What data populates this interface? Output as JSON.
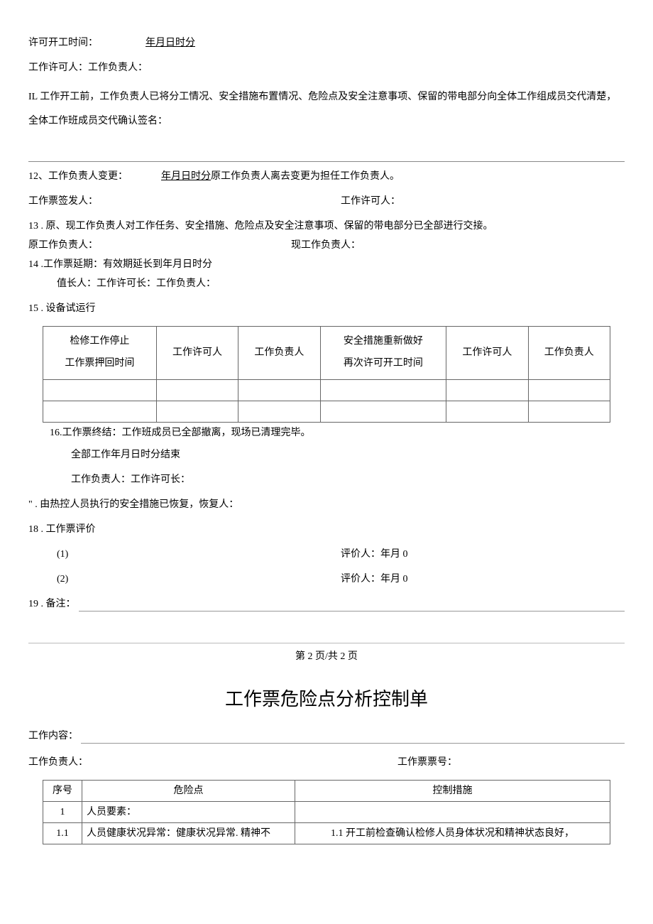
{
  "section_permit_time": {
    "label": "许可开工时间：",
    "value": "年月日时分"
  },
  "section_approvers_line": "工作许可人：工作负责人：",
  "section_IL": "IL 工作开工前，工作负责人已将分工情况、安全措施布置情况、危险点及安全注意事项、保留的带电部分向全体工作组成员交代清楚，全体工作班成员交代确认签名：",
  "item12": {
    "prefix": "12、工作负责人变更：",
    "underline": "年月日时分",
    "suffix": "原工作负责人离去变更为担任工作负责人。"
  },
  "item12_row2": {
    "left": "工作票签发人：",
    "right": "工作许可人："
  },
  "item13": "13  . 原、现工作负责人对工作任务、安全措施、危险点及安全注意事项、保留的带电部分已全部进行交接。",
  "item13_row2": {
    "left": "原工作负责人：",
    "right": "现工作负责人："
  },
  "item14_l1": "14  .工作票延期：有效期延长到年月日时分",
  "item14_l2": "值长人：工作许可长：工作负责人：",
  "item15": "15  . 设备试运行",
  "table1": {
    "headers": [
      "检修工作停止<br>工作票押回时间",
      "工作许可人",
      "工作负责人",
      "安全措施重新做好<br>再次许可开工时间",
      "工作许可人",
      "工作负责人"
    ],
    "col_widths": [
      "18%",
      "13%",
      "13%",
      "20%",
      "13%",
      "13%"
    ],
    "empty_rows": 2
  },
  "item16_l1": "16.工作票终结：工作班成员已全部撤离，现场已清理完毕。",
  "item16_l2": "全部工作年月日时分结束",
  "item16_l3": "工作负责人：工作许可长：",
  "item17": "\" . 由热控人员执行的安全措施已恢复，恢复人：",
  "item18": "18  . 工作票评价",
  "item18_rows": [
    {
      "left": "(1)",
      "right": "评价人：年月 0"
    },
    {
      "left": "(2)",
      "right": "评价人：年月 0"
    }
  ],
  "item19_label": "19  . 备注：",
  "page_marker": "第 2 页/共 2 页",
  "doc_title": "工作票危险点分析控制单",
  "work_content_label": "工作内容：",
  "row_resp_ticket": {
    "left": "工作负责人：",
    "right": "工作票票号："
  },
  "table2": {
    "headers": [
      "序号",
      "危险点",
      "控制措施"
    ],
    "rows": [
      {
        "seq": "1",
        "risk": "人员要素：",
        "ctrl": "",
        "bold": true
      },
      {
        "seq": "1.1",
        "risk": "人员健康状况异常：健康状况异常. 精神不",
        "ctrl": "1.1 开工前检查确认检修人员身体状况和精神状态良好，",
        "bold": false
      }
    ]
  }
}
